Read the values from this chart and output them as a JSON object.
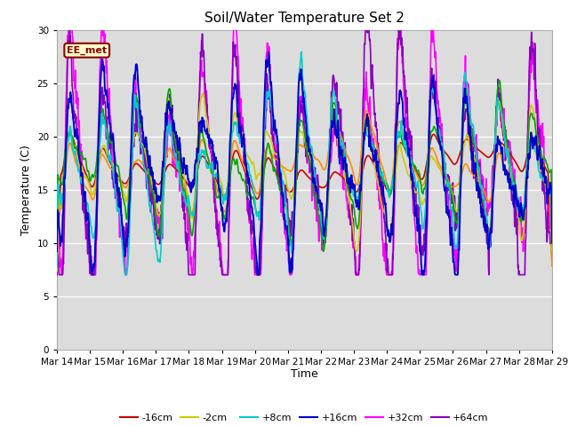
{
  "title": "Soil/Water Temperature Set 2",
  "xlabel": "Time",
  "ylabel": "Temperature (C)",
  "ylim": [
    0,
    30
  ],
  "yticks": [
    0,
    5,
    10,
    15,
    20,
    25,
    30
  ],
  "background_color": "#dcdcdc",
  "fig_color": "#ffffff",
  "annotation_text": "EE_met",
  "annotation_bg": "#ffffcc",
  "annotation_border": "#8b0000",
  "series": {
    "-16cm": {
      "color": "#cc0000",
      "lw": 1.2,
      "zorder": 5
    },
    "-8cm": {
      "color": "#ff8c00",
      "lw": 1.2,
      "zorder": 5
    },
    "-2cm": {
      "color": "#cccc00",
      "lw": 1.2,
      "zorder": 5
    },
    "+2cm": {
      "color": "#00aa00",
      "lw": 1.2,
      "zorder": 5
    },
    "+8cm": {
      "color": "#00cccc",
      "lw": 1.2,
      "zorder": 5
    },
    "+16cm": {
      "color": "#0000cc",
      "lw": 1.4,
      "zorder": 6
    },
    "+32cm": {
      "color": "#ff00ff",
      "lw": 1.2,
      "zorder": 4
    },
    "+64cm": {
      "color": "#8800bb",
      "lw": 1.2,
      "zorder": 4
    }
  },
  "x_tick_labels": [
    "Mar 14",
    "Mar 15",
    "Mar 16",
    "Mar 17",
    "Mar 18",
    "Mar 19",
    "Mar 20",
    "Mar 21",
    "Mar 22",
    "Mar 23",
    "Mar 24",
    "Mar 25",
    "Mar 26",
    "Mar 27",
    "Mar 28",
    "Mar 29"
  ],
  "n_pts": 1500
}
